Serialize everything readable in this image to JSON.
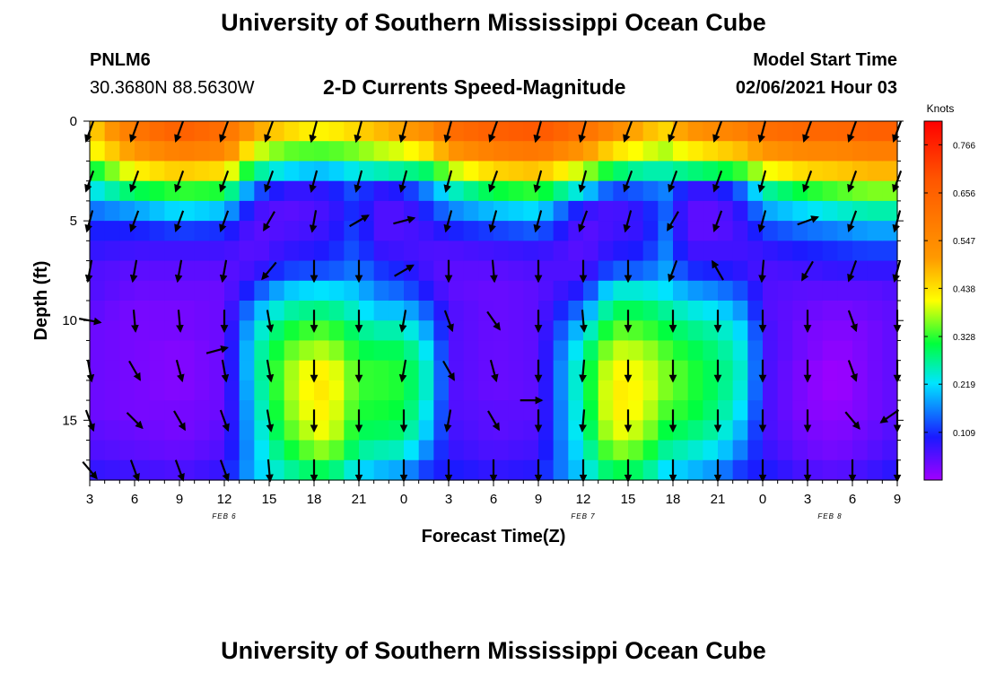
{
  "page": {
    "title_top": "University of Southern Mississippi Ocean Cube",
    "title_bottom": "University of Southern Mississippi Ocean Cube",
    "station_id": "PNLM6",
    "station_coords": "30.3680N 88.5630W",
    "plot_title": "2-D Currents Speed-Magnitude",
    "model_label": "Model Start Time",
    "model_time": "02/06/2021 Hour 03"
  },
  "chart_data": {
    "type": "heatmap",
    "title": "2-D Currents Speed-Magnitude",
    "xlabel": "Forecast Time(Z)",
    "ylabel": "Depth (ft)",
    "x_ticks": [
      "3",
      "6",
      "9",
      "12",
      "15",
      "18",
      "21",
      "0",
      "3",
      "6",
      "9",
      "12",
      "15",
      "18",
      "21",
      "0",
      "3",
      "6",
      "9"
    ],
    "x_hours": [
      0,
      3,
      6,
      9,
      12,
      15,
      18,
      21,
      24,
      27,
      30,
      33,
      36,
      39,
      42,
      45,
      48,
      51,
      54
    ],
    "date_labels": [
      {
        "label": "FEB 6",
        "hour": 9
      },
      {
        "label": "FEB 7",
        "hour": 33
      },
      {
        "label": "FEB 8",
        "hour": 49.5
      }
    ],
    "y_ticks": [
      0,
      5,
      10,
      15
    ],
    "ylim": [
      0,
      18
    ],
    "depths_ft": [
      0.5,
      1.5,
      2.5,
      3.5,
      4.5,
      5.5,
      6.5,
      7.5,
      8.5,
      9.5,
      10.5,
      11.5,
      12.5,
      13.5,
      14.5,
      15.5,
      16.5,
      17.5
    ],
    "colorbar": {
      "unit": "Knots",
      "ticks": [
        "0.766",
        "0.656",
        "0.547",
        "0.438",
        "0.328",
        "0.219",
        "0.109"
      ],
      "tick_values": [
        0.766,
        0.656,
        0.547,
        0.438,
        0.328,
        0.219,
        0.109
      ],
      "range": [
        0,
        0.82
      ]
    },
    "speed_profiles": [
      {
        "hour": 0,
        "speed": [
          0.44,
          0.4,
          0.3,
          0.22,
          0.15,
          0.1,
          0.08,
          0.06,
          0.06,
          0.05,
          0.04,
          0.04,
          0.04,
          0.04,
          0.04,
          0.05,
          0.06,
          0.08
        ]
      },
      {
        "hour": 3,
        "speed": [
          0.6,
          0.52,
          0.42,
          0.3,
          0.18,
          0.1,
          0.07,
          0.05,
          0.04,
          0.03,
          0.03,
          0.03,
          0.03,
          0.03,
          0.03,
          0.04,
          0.05,
          0.07
        ]
      },
      {
        "hour": 6,
        "speed": [
          0.66,
          0.58,
          0.46,
          0.33,
          0.22,
          0.12,
          0.07,
          0.05,
          0.04,
          0.03,
          0.03,
          0.02,
          0.02,
          0.02,
          0.03,
          0.03,
          0.04,
          0.06
        ]
      },
      {
        "hour": 9,
        "speed": [
          0.62,
          0.56,
          0.44,
          0.32,
          0.2,
          0.11,
          0.07,
          0.05,
          0.04,
          0.04,
          0.04,
          0.04,
          0.04,
          0.04,
          0.04,
          0.05,
          0.06,
          0.08
        ]
      },
      {
        "hour": 11,
        "speed": [
          0.5,
          0.4,
          0.28,
          0.14,
          0.07,
          0.05,
          0.05,
          0.07,
          0.12,
          0.18,
          0.22,
          0.24,
          0.24,
          0.23,
          0.22,
          0.21,
          0.2,
          0.2
        ]
      },
      {
        "hour": 13,
        "speed": [
          0.45,
          0.35,
          0.22,
          0.08,
          0.05,
          0.06,
          0.08,
          0.12,
          0.2,
          0.26,
          0.31,
          0.34,
          0.36,
          0.36,
          0.35,
          0.33,
          0.3,
          0.26
        ]
      },
      {
        "hour": 15,
        "speed": [
          0.42,
          0.34,
          0.2,
          0.08,
          0.06,
          0.07,
          0.09,
          0.13,
          0.22,
          0.28,
          0.34,
          0.38,
          0.42,
          0.43,
          0.42,
          0.4,
          0.36,
          0.3
        ]
      },
      {
        "hour": 16,
        "speed": [
          0.42,
          0.34,
          0.2,
          0.09,
          0.07,
          0.08,
          0.1,
          0.13,
          0.22,
          0.28,
          0.34,
          0.38,
          0.42,
          0.43,
          0.42,
          0.41,
          0.37,
          0.3
        ]
      },
      {
        "hour": 18,
        "speed": [
          0.45,
          0.36,
          0.24,
          0.14,
          0.12,
          0.13,
          0.14,
          0.16,
          0.2,
          0.24,
          0.28,
          0.31,
          0.33,
          0.33,
          0.32,
          0.3,
          0.27,
          0.22
        ]
      },
      {
        "hour": 19,
        "speed": [
          0.47,
          0.38,
          0.25,
          0.08,
          0.06,
          0.06,
          0.08,
          0.12,
          0.16,
          0.2,
          0.26,
          0.3,
          0.33,
          0.33,
          0.32,
          0.3,
          0.26,
          0.2
        ]
      },
      {
        "hour": 21,
        "speed": [
          0.5,
          0.4,
          0.27,
          0.1,
          0.06,
          0.06,
          0.07,
          0.1,
          0.14,
          0.2,
          0.26,
          0.3,
          0.32,
          0.32,
          0.31,
          0.29,
          0.25,
          0.18
        ]
      },
      {
        "hour": 23,
        "speed": [
          0.55,
          0.45,
          0.3,
          0.18,
          0.12,
          0.08,
          0.06,
          0.06,
          0.08,
          0.12,
          0.16,
          0.2,
          0.22,
          0.22,
          0.2,
          0.18,
          0.14,
          0.1
        ]
      },
      {
        "hour": 24,
        "speed": [
          0.62,
          0.52,
          0.38,
          0.24,
          0.16,
          0.1,
          0.06,
          0.05,
          0.05,
          0.06,
          0.06,
          0.06,
          0.06,
          0.06,
          0.06,
          0.07,
          0.08,
          0.1
        ]
      },
      {
        "hour": 27,
        "speed": [
          0.66,
          0.58,
          0.45,
          0.31,
          0.2,
          0.12,
          0.07,
          0.05,
          0.04,
          0.04,
          0.04,
          0.04,
          0.04,
          0.04,
          0.05,
          0.05,
          0.06,
          0.08
        ]
      },
      {
        "hour": 30,
        "speed": [
          0.68,
          0.6,
          0.47,
          0.33,
          0.22,
          0.14,
          0.08,
          0.06,
          0.05,
          0.05,
          0.05,
          0.05,
          0.05,
          0.05,
          0.05,
          0.06,
          0.07,
          0.09
        ]
      },
      {
        "hour": 33,
        "speed": [
          0.62,
          0.52,
          0.38,
          0.22,
          0.08,
          0.05,
          0.05,
          0.06,
          0.1,
          0.16,
          0.22,
          0.26,
          0.28,
          0.28,
          0.27,
          0.26,
          0.24,
          0.22
        ]
      },
      {
        "hour": 35,
        "speed": [
          0.55,
          0.44,
          0.3,
          0.12,
          0.06,
          0.07,
          0.09,
          0.14,
          0.24,
          0.3,
          0.35,
          0.39,
          0.42,
          0.43,
          0.43,
          0.41,
          0.37,
          0.31
        ]
      },
      {
        "hour": 37,
        "speed": [
          0.48,
          0.4,
          0.26,
          0.14,
          0.09,
          0.08,
          0.1,
          0.14,
          0.24,
          0.3,
          0.34,
          0.38,
          0.4,
          0.41,
          0.4,
          0.38,
          0.34,
          0.29
        ]
      },
      {
        "hour": 38.5,
        "speed": [
          0.45,
          0.38,
          0.26,
          0.16,
          0.14,
          0.15,
          0.16,
          0.18,
          0.22,
          0.27,
          0.31,
          0.34,
          0.36,
          0.36,
          0.34,
          0.31,
          0.27,
          0.22
        ]
      },
      {
        "hour": 40,
        "speed": [
          0.52,
          0.42,
          0.28,
          0.08,
          0.05,
          0.05,
          0.07,
          0.11,
          0.18,
          0.24,
          0.28,
          0.31,
          0.33,
          0.33,
          0.32,
          0.29,
          0.25,
          0.2
        ]
      },
      {
        "hour": 42,
        "speed": [
          0.55,
          0.45,
          0.3,
          0.08,
          0.05,
          0.05,
          0.07,
          0.1,
          0.16,
          0.22,
          0.26,
          0.28,
          0.29,
          0.29,
          0.28,
          0.26,
          0.22,
          0.17
        ]
      },
      {
        "hour": 44,
        "speed": [
          0.58,
          0.48,
          0.34,
          0.16,
          0.1,
          0.08,
          0.07,
          0.08,
          0.12,
          0.16,
          0.2,
          0.22,
          0.23,
          0.22,
          0.2,
          0.17,
          0.14,
          0.1
        ]
      },
      {
        "hour": 45,
        "speed": [
          0.62,
          0.52,
          0.4,
          0.26,
          0.18,
          0.12,
          0.08,
          0.06,
          0.06,
          0.06,
          0.07,
          0.07,
          0.07,
          0.07,
          0.07,
          0.07,
          0.08,
          0.1
        ]
      },
      {
        "hour": 48,
        "speed": [
          0.64,
          0.56,
          0.45,
          0.32,
          0.22,
          0.15,
          0.1,
          0.07,
          0.05,
          0.04,
          0.03,
          0.03,
          0.02,
          0.02,
          0.02,
          0.03,
          0.04,
          0.06
        ]
      },
      {
        "hour": 50,
        "speed": [
          0.64,
          0.56,
          0.46,
          0.34,
          0.24,
          0.16,
          0.11,
          0.08,
          0.05,
          0.03,
          0.02,
          0.01,
          0.0,
          0.0,
          0.01,
          0.02,
          0.03,
          0.05
        ]
      },
      {
        "hour": 52,
        "speed": [
          0.66,
          0.58,
          0.48,
          0.36,
          0.26,
          0.18,
          0.12,
          0.08,
          0.05,
          0.04,
          0.03,
          0.03,
          0.03,
          0.03,
          0.03,
          0.04,
          0.05,
          0.07
        ]
      },
      {
        "hour": 54,
        "speed": [
          0.66,
          0.58,
          0.48,
          0.36,
          0.26,
          0.18,
          0.12,
          0.08,
          0.06,
          0.05,
          0.05,
          0.05,
          0.05,
          0.05,
          0.05,
          0.06,
          0.07,
          0.09
        ]
      }
    ],
    "vector_hours": [
      0,
      3,
      6,
      9,
      12,
      15,
      18,
      21,
      24,
      27,
      30,
      33,
      36,
      39,
      42,
      45,
      48,
      51,
      54
    ],
    "vector_depths_ft": [
      0.5,
      3,
      5,
      7.5,
      10,
      12.5,
      15,
      17.5
    ],
    "vectors_deg": [
      [
        200,
        200,
        195,
        190,
        100,
        170,
        160,
        140
      ],
      [
        200,
        200,
        200,
        190,
        175,
        150,
        135,
        160
      ],
      [
        200,
        200,
        200,
        190,
        175,
        165,
        150,
        160
      ],
      [
        200,
        200,
        200,
        190,
        180,
        170,
        160,
        160
      ],
      [
        200,
        200,
        210,
        220,
        170,
        170,
        170,
        175
      ],
      [
        195,
        195,
        190,
        180,
        180,
        180,
        180,
        180
      ],
      [
        195,
        195,
        60,
        180,
        180,
        180,
        180,
        180
      ],
      [
        195,
        195,
        75,
        60,
        190,
        190,
        180,
        180
      ],
      [
        195,
        195,
        195,
        180,
        160,
        150,
        190,
        180
      ],
      [
        200,
        200,
        195,
        175,
        145,
        165,
        150,
        180
      ],
      [
        195,
        195,
        195,
        180,
        180,
        180,
        180,
        180
      ],
      [
        195,
        195,
        200,
        180,
        175,
        185,
        185,
        180
      ],
      [
        200,
        200,
        195,
        180,
        180,
        180,
        180,
        180
      ],
      [
        200,
        200,
        210,
        200,
        180,
        180,
        180,
        180
      ],
      [
        200,
        200,
        200,
        330,
        180,
        180,
        180,
        180
      ],
      [
        195,
        195,
        195,
        185,
        180,
        180,
        180,
        180
      ],
      [
        200,
        200,
        70,
        210,
        180,
        180,
        180,
        180
      ],
      [
        200,
        200,
        200,
        200,
        160,
        160,
        140,
        180
      ],
      [
        200,
        200,
        195,
        195,
        180,
        180,
        180,
        180
      ]
    ],
    "extra_vectors": [
      {
        "hour": 8.5,
        "depth": 11.5,
        "deg": 75
      },
      {
        "hour": 29.5,
        "depth": 14,
        "deg": 90
      },
      {
        "hour": 53.5,
        "depth": 14.8,
        "deg": 235
      }
    ]
  }
}
